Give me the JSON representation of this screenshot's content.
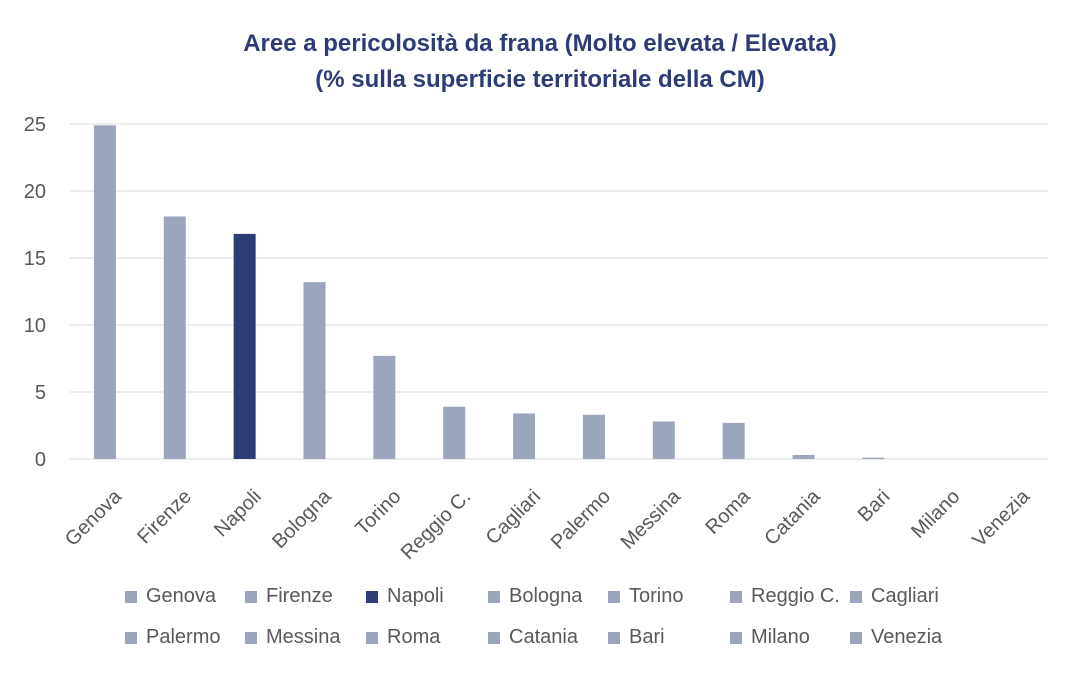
{
  "chart_data": {
    "type": "bar",
    "title": "Aree a pericolosità da frana (Molto elevata / Elevata)",
    "subtitle": "(% sulla superficie territoriale della CM)",
    "categories": [
      "Genova",
      "Firenze",
      "Napoli",
      "Bologna",
      "Torino",
      "Reggio C.",
      "Cagliari",
      "Palermo",
      "Messina",
      "Roma",
      "Catania",
      "Bari",
      "Milano",
      "Venezia"
    ],
    "values": [
      24.9,
      18.1,
      16.8,
      13.2,
      7.7,
      3.9,
      3.4,
      3.3,
      2.8,
      2.7,
      0.3,
      0.1,
      0,
      0
    ],
    "ylim": [
      0,
      25
    ],
    "yticks": [
      "0",
      "5",
      "10",
      "15",
      "20",
      "25"
    ],
    "grid": true,
    "legend_position": "bottom",
    "colors": {
      "default": "#9ba6bd",
      "highlight": "#2d3c74",
      "title": "#2d3c74",
      "grid": "#d9d9d9",
      "text": "#595959"
    },
    "highlight_category": "Napoli"
  }
}
